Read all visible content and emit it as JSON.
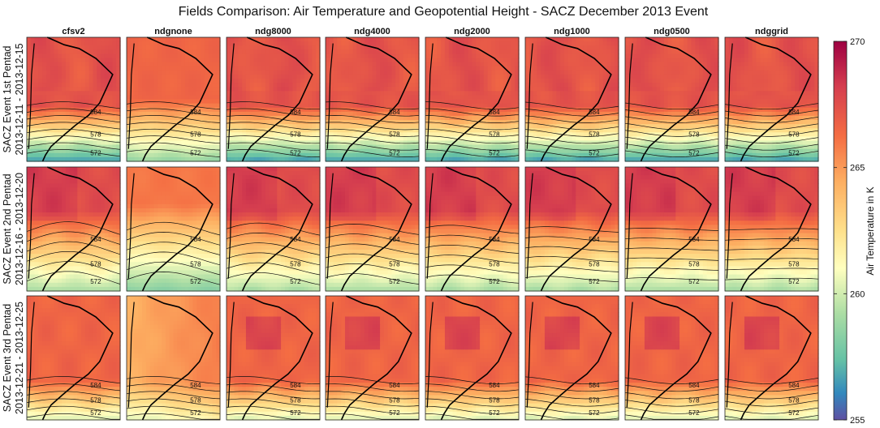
{
  "chart_data": {
    "type": "heatmap",
    "title": "Fields Comparison: Air Temperature and Geopotential Height - SACZ December 2013 Event",
    "columns": [
      "cfsv2",
      "ndgnone",
      "ndg8000",
      "ndg4000",
      "ndg2000",
      "ndg1000",
      "ndg0500",
      "ndggrid"
    ],
    "rows": [
      {
        "line1": "SACZ Event 1st Pentad",
        "line2": "2013-12-11 - 2013-12-15"
      },
      {
        "line1": "SACZ Event 2nd Pentad",
        "line2": "2013-12-16 - 2013-12-20"
      },
      {
        "line1": "SACZ Event 3rd Pentad",
        "line2": "2013-12-21 - 2013-12-25"
      }
    ],
    "colorbar": {
      "label": "Air Temperature in K",
      "range": [
        255,
        270
      ],
      "ticks": [
        "270",
        "265",
        "260",
        "255"
      ],
      "colormap": "spectral"
    },
    "contour_labels": [
      "584",
      "578",
      "572"
    ]
  }
}
